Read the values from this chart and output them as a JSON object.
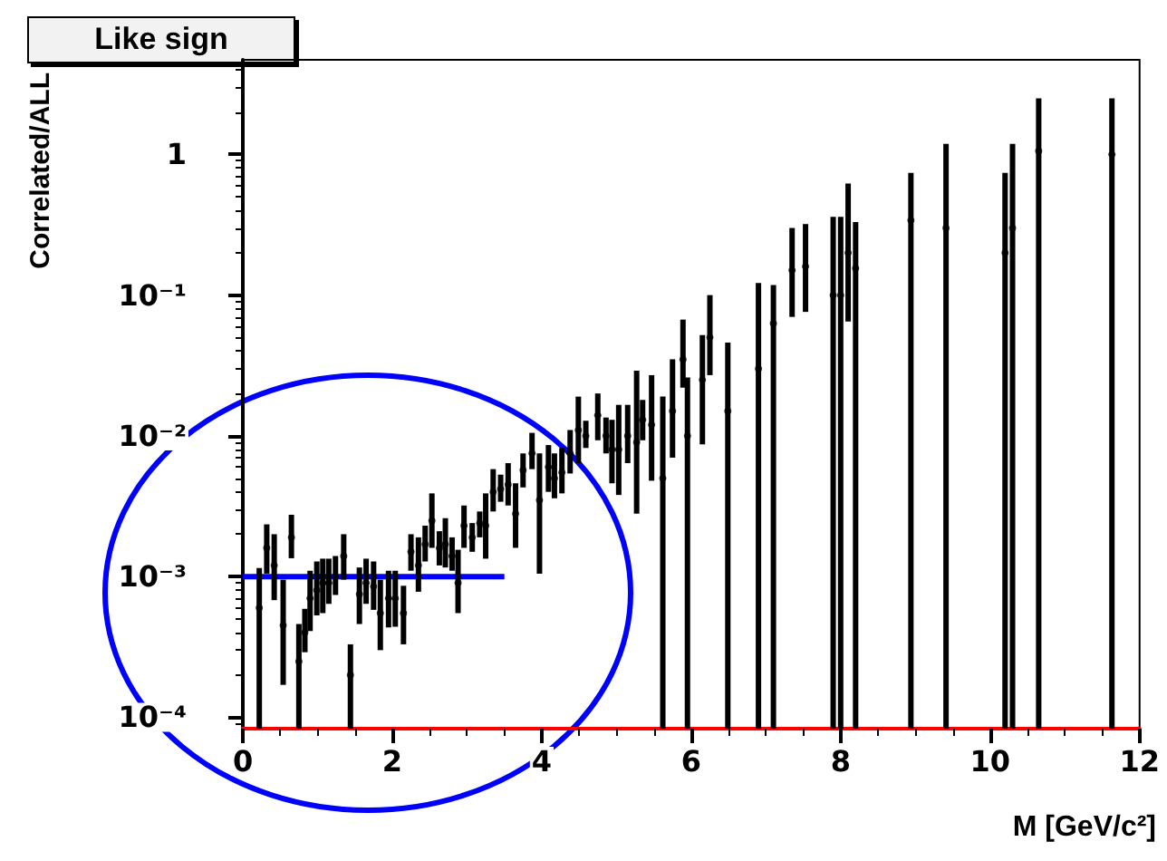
{
  "chart_data": {
    "type": "scatter",
    "title": "Like sign",
    "xlabel": "M [GeV/c²]",
    "ylabel": "Correlated/ALL",
    "log": "y",
    "xlim": [
      0,
      12
    ],
    "xticks": [
      0,
      2,
      4,
      6,
      8,
      10,
      12
    ],
    "ylim": [
      8.3e-05,
      4.7
    ],
    "yticks": [
      {
        "value": 0.0001,
        "label": "10⁻⁴"
      },
      {
        "value": 0.001,
        "label": "10⁻³"
      },
      {
        "value": 0.01,
        "label": "10⁻²"
      },
      {
        "value": 0.1,
        "label": "10⁻¹"
      },
      1
    ],
    "grid": false,
    "series": [
      {
        "color": "#000000",
        "marker": "circle",
        "x": [
          0.22,
          0.32,
          0.42,
          0.54,
          0.65,
          0.75,
          0.83,
          0.9,
          0.99,
          1.07,
          1.15,
          1.24,
          1.35,
          1.44,
          1.56,
          1.65,
          1.75,
          1.84,
          1.95,
          2.04,
          2.15,
          2.25,
          2.35,
          2.44,
          2.53,
          2.63,
          2.71,
          2.8,
          2.88,
          2.96,
          3.07,
          3.17,
          3.25,
          3.35,
          3.45,
          3.55,
          3.65,
          3.75,
          3.87,
          3.97,
          4.09,
          4.17,
          4.27,
          4.38,
          4.49,
          4.59,
          4.75,
          4.86,
          4.94,
          5.03,
          5.15,
          5.27,
          5.35,
          5.47,
          5.62,
          5.75,
          5.89,
          5.95,
          6.15,
          6.25,
          6.49,
          6.9,
          7.1,
          7.35,
          7.53,
          7.9,
          8.0,
          8.1,
          8.2,
          8.94,
          9.41,
          10.2,
          10.3,
          10.65,
          11.63
        ],
        "values": [
          0.0006,
          0.0016,
          0.0012,
          0.00045,
          0.0019,
          0.00025,
          0.0004,
          0.0007,
          0.0008,
          0.0009,
          0.0009,
          0.001,
          0.0014,
          0.0002,
          0.00075,
          0.0009,
          0.00085,
          0.00055,
          0.0007,
          0.0007,
          0.00055,
          0.0015,
          0.0012,
          0.0017,
          0.0025,
          0.0016,
          0.0017,
          0.0014,
          0.0009,
          0.0023,
          0.0019,
          0.0024,
          0.0023,
          0.004,
          0.0042,
          0.0045,
          0.0028,
          0.0057,
          0.0075,
          0.0035,
          0.006,
          0.005,
          0.0055,
          0.0075,
          0.011,
          0.01,
          0.014,
          0.01,
          0.008,
          0.008,
          0.01,
          0.009,
          0.013,
          0.012,
          0.005,
          0.015,
          0.035,
          0.01,
          0.025,
          0.05,
          0.015,
          0.03,
          0.063,
          0.15,
          0.16,
          0.1,
          0.1,
          0.2,
          0.155,
          0.34,
          0.3,
          0.2,
          0.3,
          1.06,
          1
        ],
        "errors": [
          [
            8.3e-05,
            0.00115
          ],
          [
            0.00105,
            0.00235
          ],
          [
            0.00068,
            0.002
          ],
          [
            0.00017,
            0.00095
          ],
          [
            0.00135,
            0.00275
          ],
          [
            8.3e-05,
            0.00046
          ],
          [
            0.00029,
            0.00059
          ],
          [
            0.00041,
            0.0011
          ],
          [
            0.00053,
            0.00128
          ],
          [
            0.00055,
            0.00134
          ],
          [
            0.00064,
            0.00134
          ],
          [
            0.00074,
            0.0014
          ],
          [
            0.00095,
            0.002
          ],
          [
            8.3e-05,
            0.00033
          ],
          [
            0.00046,
            0.00116
          ],
          [
            0.00064,
            0.00134
          ],
          [
            0.00058,
            0.00128
          ],
          [
            0.0003,
            0.00095
          ],
          [
            0.000435,
            0.0011
          ],
          [
            0.00044,
            0.0011
          ],
          [
            0.00033,
            0.00086
          ],
          [
            0.0011,
            0.002
          ],
          [
            0.00078,
            0.0019
          ],
          [
            0.00128,
            0.0023
          ],
          [
            0.0016,
            0.0039
          ],
          [
            0.0012,
            0.0021
          ],
          [
            0.00116,
            0.0026
          ],
          [
            0.0011,
            0.0019
          ],
          [
            0.00055,
            0.00155
          ],
          [
            0.0016,
            0.0032
          ],
          [
            0.0015,
            0.0024
          ],
          [
            0.0019,
            0.0029
          ],
          [
            0.00134,
            0.0039
          ],
          [
            0.0029,
            0.0058
          ],
          [
            0.0034,
            0.0053
          ],
          [
            0.0032,
            0.0064
          ],
          [
            0.0016,
            0.0046
          ],
          [
            0.0043,
            0.0075
          ],
          [
            0.0058,
            0.0105
          ],
          [
            0.00105,
            0.0075
          ],
          [
            0.004,
            0.0086
          ],
          [
            0.0036,
            0.0075
          ],
          [
            0.0039,
            0.0082
          ],
          [
            0.0054,
            0.011
          ],
          [
            0.0064,
            0.019
          ],
          [
            0.0082,
            0.0128
          ],
          [
            0.0093,
            0.02
          ],
          [
            0.0075,
            0.0135
          ],
          [
            0.0046,
            0.013
          ],
          [
            0.0038,
            0.0166
          ],
          [
            0.0064,
            0.0166
          ],
          [
            0.0028,
            0.029
          ],
          [
            0.0093,
            0.018
          ],
          [
            0.0048,
            0.027
          ],
          [
            8.3e-05,
            0.019
          ],
          [
            0.007,
            0.035
          ],
          [
            0.022,
            0.067
          ],
          [
            8.3e-05,
            0.026
          ],
          [
            0.0087,
            0.052
          ],
          [
            0.027,
            0.1
          ],
          [
            8.3e-05,
            0.046
          ],
          [
            8.3e-05,
            0.122
          ],
          [
            8.3e-05,
            0.118
          ],
          [
            0.07,
            0.3
          ],
          [
            0.076,
            0.32
          ],
          [
            8.3e-05,
            0.36
          ],
          [
            8.3e-05,
            0.36
          ],
          [
            0.065,
            0.62
          ],
          [
            8.3e-05,
            0.33
          ],
          [
            8.3e-05,
            0.74
          ],
          [
            8.3e-05,
            1.19
          ],
          [
            8.3e-05,
            0.74
          ],
          [
            8.3e-05,
            1.19
          ],
          [
            8.3e-05,
            2.5
          ],
          [
            8.3e-05,
            2.5
          ]
        ]
      },
      {
        "type": "line",
        "color": "#0000ff",
        "marker": "none",
        "line_style": "solid",
        "x": [
          0,
          3.5
        ],
        "values": [
          0.001,
          0.001
        ]
      }
    ]
  }
}
